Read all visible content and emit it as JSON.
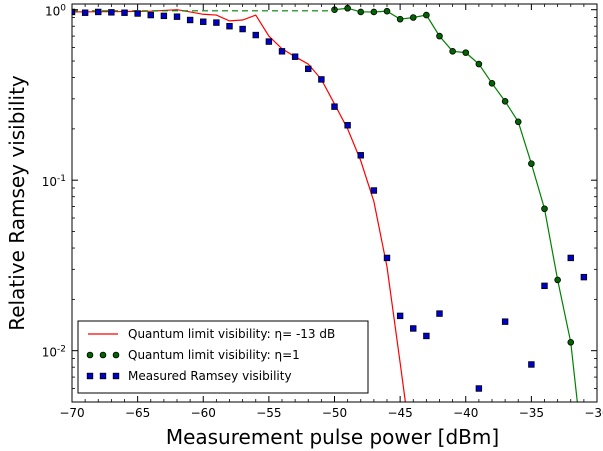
{
  "chart_data": {
    "type": "scatter",
    "xlabel": "Measurement pulse power [dBm]",
    "ylabel": "Relative Ramsey visibility",
    "xlim": [
      -70,
      -30
    ],
    "ylim": [
      0.005,
      1.08
    ],
    "yscale": "log",
    "grid": false,
    "legend_position": "bottom-left",
    "x_ticks": [
      -70,
      -65,
      -60,
      -55,
      -50,
      -45,
      -40,
      -35,
      -30
    ],
    "x_tick_labels": [
      "−70",
      "−65",
      "−60",
      "−55",
      "−50",
      "−45",
      "−40",
      "−35",
      "−30"
    ],
    "y_ticks": [
      1,
      0.1,
      0.01
    ],
    "y_tick_labels": [
      {
        "base": "10",
        "exp": "0"
      },
      {
        "base": "10",
        "exp": "-1"
      },
      {
        "base": "10",
        "exp": "-2"
      }
    ],
    "series": [
      {
        "name": "Quantum limit visibility: η= -13 dB",
        "style": "line",
        "color": "#ff0000",
        "x": [
          -70,
          -66,
          -64,
          -62,
          -61,
          -60,
          -59,
          -58,
          -57,
          -56,
          -55,
          -54,
          -53,
          -52,
          -51,
          -50,
          -49,
          -48,
          -47,
          -46,
          -45,
          -44.6
        ],
        "y": [
          0.97,
          0.975,
          0.98,
          1.0,
          0.97,
          0.94,
          0.93,
          0.86,
          0.87,
          0.93,
          0.7,
          0.59,
          0.53,
          0.48,
          0.39,
          0.28,
          0.2,
          0.13,
          0.075,
          0.031,
          0.0085,
          0.005
        ]
      },
      {
        "name": "Quantum limit visibility: η=1",
        "style": "line+marker",
        "color": "#008000",
        "marker_fill": "#006400",
        "x": [
          -50,
          -49,
          -48,
          -47,
          -46,
          -45,
          -44,
          -43,
          -42,
          -41,
          -40,
          -39,
          -38,
          -37,
          -36,
          -35,
          -34,
          -33,
          -32,
          -31.5
        ],
        "y": [
          1.0,
          1.02,
          0.97,
          0.97,
          0.98,
          0.88,
          0.9,
          0.93,
          0.7,
          0.57,
          0.56,
          0.48,
          0.37,
          0.29,
          0.22,
          0.125,
          0.068,
          0.026,
          0.0112,
          0.005
        ]
      },
      {
        "name": "Quantum limit visibility: η=1 (dashed)",
        "style": "dashed",
        "color": "#008000",
        "x": [
          -70,
          -50
        ],
        "y": [
          0.985,
          0.985
        ]
      },
      {
        "name": "Measured Ramsey visibility",
        "style": "marker",
        "color": "#00008b",
        "marker_fill": "#0000cd",
        "x": [
          -70,
          -69,
          -68,
          -67,
          -66,
          -65,
          -64,
          -63,
          -62,
          -61,
          -60,
          -59,
          -58,
          -57,
          -56,
          -55,
          -54,
          -53,
          -52,
          -51,
          -50,
          -49,
          -48,
          -47,
          -46,
          -45,
          -44,
          -43,
          -42,
          -39,
          -37,
          -35,
          -34,
          -32,
          -31
        ],
        "y": [
          0.97,
          0.96,
          0.97,
          0.965,
          0.96,
          0.95,
          0.93,
          0.92,
          0.91,
          0.87,
          0.85,
          0.84,
          0.8,
          0.77,
          0.71,
          0.65,
          0.57,
          0.53,
          0.45,
          0.39,
          0.27,
          0.21,
          0.14,
          0.087,
          0.035,
          0.016,
          0.0135,
          0.0122,
          0.0165,
          0.006,
          0.0148,
          0.0083,
          0.024,
          0.035,
          0.027
        ]
      }
    ],
    "legend": [
      {
        "text": "Quantum limit visibility: η= -13 dB",
        "style": "line",
        "color": "#ff0000"
      },
      {
        "text": "Quantum limit visibility: η=1",
        "style": "marker",
        "color": "#006400"
      },
      {
        "text": "Measured Ramsey visibility",
        "style": "marker",
        "color": "#0000cd"
      }
    ]
  }
}
